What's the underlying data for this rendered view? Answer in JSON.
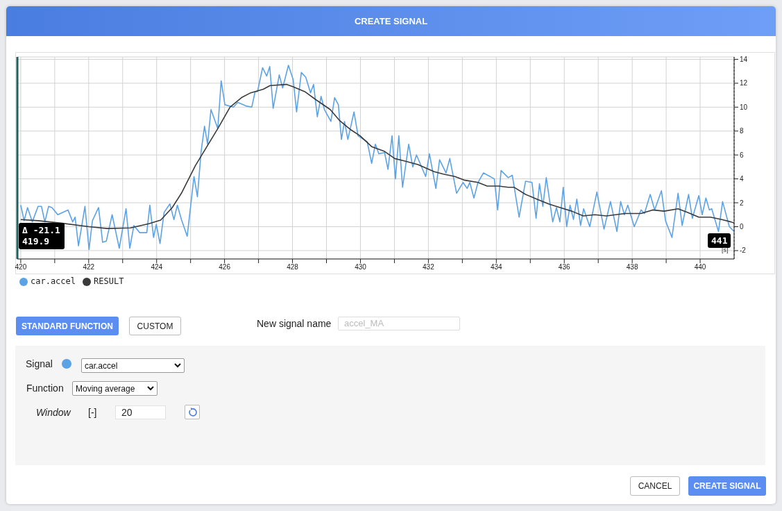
{
  "chart_data": {
    "type": "line",
    "title": "CREATE SIGNAL",
    "xlabel": "[s]",
    "xlim": [
      419.9,
      441
    ],
    "ylim": [
      -2.7,
      14.2
    ],
    "xticks": [
      420,
      {
        "value": 421,
        "label": null
      },
      422,
      {
        "value": 423,
        "label": null
      },
      424,
      {
        "value": 425,
        "label": null
      },
      426,
      {
        "value": 427,
        "label": null
      },
      428,
      {
        "value": 429,
        "label": null
      },
      430,
      {
        "value": 431,
        "label": null
      },
      432,
      {
        "value": 433,
        "label": null
      },
      434,
      {
        "value": 435,
        "label": null
      },
      436,
      {
        "value": 437,
        "label": null
      },
      438,
      {
        "value": 439,
        "label": null
      },
      440
    ],
    "yticks": [
      -2,
      0,
      2,
      4,
      6,
      8,
      10,
      12,
      14
    ],
    "grid": true,
    "legend": "bottom left",
    "series": [
      {
        "name": "car.accel",
        "color": "#5ca3e6",
        "x": [
          420.0,
          420.1,
          420.2,
          420.34,
          420.51,
          420.61,
          420.71,
          420.82,
          420.92,
          421.02,
          421.09,
          421.19,
          421.39,
          421.53,
          421.6,
          421.7,
          421.89,
          422.01,
          422.11,
          422.29,
          422.41,
          422.52,
          422.69,
          422.9,
          423.1,
          423.21,
          423.33,
          423.5,
          423.71,
          423.8,
          423.91,
          423.99,
          424.1,
          424.22,
          424.39,
          424.51,
          424.61,
          424.73,
          424.9,
          425.1,
          425.2,
          425.31,
          425.41,
          425.5,
          425.6,
          425.8,
          425.9,
          426.01,
          426.26,
          426.39,
          426.63,
          426.8,
          426.9,
          426.97,
          427.12,
          427.24,
          427.33,
          427.43,
          427.61,
          427.71,
          427.88,
          428.02,
          428.12,
          428.26,
          428.39,
          428.53,
          428.62,
          428.73,
          428.84,
          428.94,
          429.13,
          429.24,
          429.35,
          429.44,
          429.53,
          429.63,
          429.81,
          429.93,
          430.2,
          430.33,
          430.44,
          430.54,
          430.71,
          430.81,
          430.93,
          431.03,
          431.13,
          431.24,
          431.42,
          431.54,
          431.65,
          431.92,
          432.03,
          432.22,
          432.33,
          432.52,
          432.63,
          432.83,
          433.02,
          433.14,
          433.22,
          433.34,
          433.46,
          433.62,
          433.94,
          434.04,
          434.14,
          434.35,
          434.47,
          434.67,
          434.86,
          435.05,
          435.17,
          435.27,
          435.37,
          435.47,
          435.66,
          435.77,
          435.87,
          435.97,
          436.07,
          436.17,
          436.27,
          436.37,
          436.48,
          436.57,
          436.75,
          436.96,
          437.17,
          437.36,
          437.55,
          437.66,
          437.77,
          437.87,
          438.06,
          438.26,
          438.36,
          438.53,
          438.66,
          438.86,
          438.98,
          439.17,
          439.35,
          439.47,
          439.66,
          439.77,
          439.96,
          440.06,
          440.17,
          440.27,
          440.34,
          440.45,
          440.54,
          440.66,
          440.77,
          440.86,
          440.95,
          441.0
        ],
        "values": [
          1.8,
          0.5,
          1.6,
          0.4,
          1.7,
          1.7,
          0.4,
          1.7,
          1.6,
          null,
          1.0,
          null,
          1.4,
          0.4,
          0.8,
          -1.6,
          1.7,
          -1.9,
          0.5,
          1.6,
          -1.3,
          -1.2,
          1.0,
          -1.8,
          1.5,
          -1.8,
          0.1,
          -0.5,
          -0.5,
          1.8,
          -0.9,
          0.2,
          -1.4,
          1.2,
          1.9,
          0.6,
          1.8,
          0.6,
          -0.8,
          4.2,
          2.5,
          6.3,
          8.4,
          6.9,
          9.8,
          8.2,
          12.2,
          10.2,
          10.0,
          10.4,
          10.1,
          10.0,
          11.3,
          11.3,
          13.3,
          12.6,
          13.4,
          9.9,
          12.7,
          11.6,
          13.5,
          12.3,
          9.6,
          12.9,
          12.5,
          11.2,
          11.9,
          9.2,
          10.9,
          9.8,
          8.8,
          10.8,
          10.2,
          7.3,
          8.8,
          7.3,
          9.6,
          7.6,
          7.1,
          5.3,
          6.9,
          6.1,
          6.2,
          4.8,
          7.6,
          4.0,
          7.6,
          3.3,
          6.9,
          5.0,
          6.0,
          4.2,
          6.1,
          3.2,
          5.6,
          4.5,
          5.7,
          2.8,
          3.7,
          3.2,
          3.7,
          2.4,
          3.7,
          4.5,
          4.0,
          1.4,
          4.7,
          4.1,
          4.3,
          0.8,
          3.8,
          3.7,
          0.7,
          3.6,
          1.7,
          4.1,
          0.4,
          1.6,
          0.4,
          3.3,
          0.0,
          1.8,
          0.6,
          2.3,
          0.1,
          1.5,
          0.0,
          2.9,
          -0.2,
          2.1,
          -0.4,
          2.1,
          1.0,
          1.8,
          0.0,
          1.4,
          1.1,
          2.7,
          1.4,
          3.0,
          0.5,
          -0.9,
          2.8,
          0.1,
          2.7,
          0.7,
          2.6,
          1.0,
          2.4,
          1.4,
          1.5,
          null,
          -0.4,
          2.1,
          null,
          0.0,
          null,
          -0.4
        ]
      },
      {
        "name": "RESULT",
        "color": "#3a3a3a",
        "x": [
          420.0,
          420.51,
          421.19,
          422.01,
          422.55,
          423.23,
          423.77,
          424.12,
          424.46,
          424.73,
          425.14,
          425.48,
          425.82,
          426.16,
          426.5,
          426.77,
          427.14,
          427.34,
          427.82,
          428.02,
          428.36,
          428.7,
          429.11,
          429.38,
          429.72,
          429.99,
          430.33,
          430.71,
          431.01,
          431.29,
          431.69,
          432.17,
          432.44,
          432.78,
          433.05,
          433.46,
          433.73,
          434.07,
          434.35,
          434.52,
          434.86,
          435.2,
          435.54,
          435.88,
          436.22,
          436.56,
          436.9,
          437.24,
          437.79,
          438.26,
          438.6,
          438.94,
          439.35,
          439.62,
          439.96,
          440.3,
          440.64,
          440.91,
          441.0
        ],
        "values": [
          0.6,
          0.5,
          0.3,
          0.0,
          -0.15,
          -0.1,
          0.25,
          0.55,
          1.6,
          2.8,
          5.1,
          6.7,
          8.3,
          10.0,
          10.8,
          11.2,
          11.5,
          11.8,
          11.9,
          11.7,
          11.3,
          10.6,
          9.8,
          8.9,
          8.1,
          7.6,
          6.7,
          6.3,
          5.7,
          5.5,
          5.2,
          4.6,
          4.4,
          4.2,
          3.9,
          3.7,
          3.4,
          3.4,
          3.3,
          3.3,
          2.7,
          2.3,
          1.9,
          1.6,
          1.3,
          0.9,
          1.0,
          0.9,
          1.1,
          1.1,
          1.4,
          1.3,
          1.5,
          1.2,
          0.8,
          0.8,
          0.6,
          0.4,
          0.3
        ]
      }
    ],
    "ref_lines": [
      {
        "axis": "x",
        "value": 419.9,
        "color": "#1f5f5f",
        "line_style": "solid"
      },
      {
        "axis": "x",
        "value": 441,
        "color": "#555555",
        "line_style": "dotted"
      }
    ],
    "annotations": [
      "Δ -21.1",
      "419.9",
      "441",
      "STANDARD FUNCTION",
      "CUSTOM",
      "New signal name",
      "accel_MA",
      "Signal",
      "car.accel",
      "Function",
      "Moving average",
      "Window",
      "[-]",
      "20",
      "CANCEL",
      "CREATE SIGNAL"
    ]
  }
}
